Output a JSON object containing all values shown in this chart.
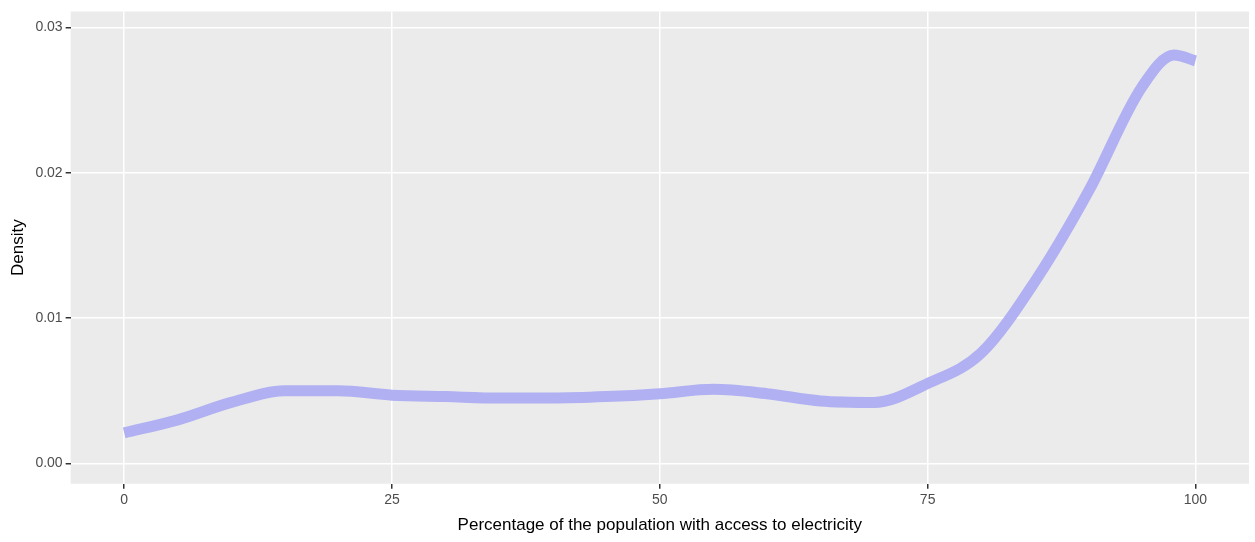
{
  "chart_data": {
    "type": "line",
    "xlabel": "Percentage of the population with access to electricity",
    "ylabel": "Density",
    "x": [
      0,
      5,
      10,
      15,
      20,
      25,
      30,
      35,
      40,
      45,
      50,
      55,
      60,
      65,
      70,
      75,
      80,
      85,
      90,
      95,
      98,
      100
    ],
    "series": [
      {
        "color": "#b0b0f2",
        "values": [
          0.0021,
          0.003,
          0.0042,
          0.005,
          0.005,
          0.0047,
          0.0046,
          0.0045,
          0.0045,
          0.0046,
          0.0048,
          0.0051,
          0.0048,
          0.0043,
          0.0042,
          0.0055,
          0.0076,
          0.0125,
          0.0187,
          0.0259,
          0.0281,
          0.0277
        ]
      }
    ],
    "xlim": [
      -5,
      105
    ],
    "xticks": [
      0,
      25,
      50,
      75,
      100
    ],
    "ylim": [
      -0.0014,
      0.0311
    ],
    "yticks": [
      {
        "value": 0,
        "label": "0.00"
      },
      {
        "value": 0.01,
        "label": "0.01"
      },
      {
        "value": 0.02,
        "label": "0.02"
      },
      {
        "value": 0.03,
        "label": "0.03"
      }
    ],
    "grid": true,
    "legend": false,
    "marker": "none",
    "line_style": "solid"
  }
}
